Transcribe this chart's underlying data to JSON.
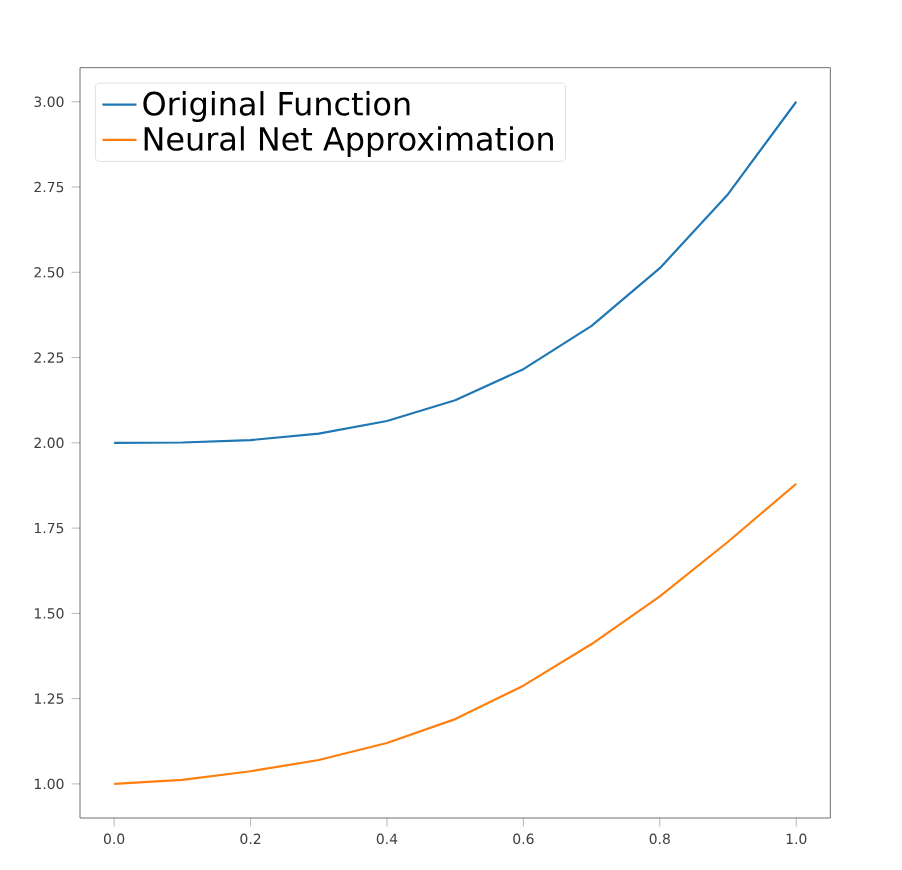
{
  "chart_data": {
    "type": "line",
    "x": [
      0,
      0.1,
      0.2,
      0.3,
      0.4,
      0.5,
      0.6,
      0.7,
      0.8,
      0.9,
      1.0
    ],
    "series": [
      {
        "name": "Original Function",
        "color": "#1f77b4",
        "values": [
          2.0,
          2.001,
          2.008,
          2.027,
          2.064,
          2.125,
          2.216,
          2.343,
          2.512,
          2.729,
          3.0
        ]
      },
      {
        "name": "Neural Net Approximation",
        "color": "#ff7f0e",
        "values": [
          1.0,
          1.012,
          1.037,
          1.07,
          1.12,
          1.19,
          1.288,
          1.41,
          1.55,
          1.71,
          1.88
        ]
      }
    ],
    "xlim": [
      -0.05,
      1.05
    ],
    "ylim": [
      0.9,
      3.1
    ],
    "xticks": [
      {
        "value": 0.0,
        "label": "0.0"
      },
      {
        "value": 0.2,
        "label": "0.2"
      },
      {
        "value": 0.4,
        "label": "0.4"
      },
      {
        "value": 0.6,
        "label": "0.6"
      },
      {
        "value": 0.8,
        "label": "0.8"
      },
      {
        "value": 1.0,
        "label": "1.0"
      }
    ],
    "yticks": [
      {
        "value": 1.0,
        "label": "1.00"
      },
      {
        "value": 1.25,
        "label": "1.25"
      },
      {
        "value": 1.5,
        "label": "1.50"
      },
      {
        "value": 1.75,
        "label": "1.75"
      },
      {
        "value": 2.0,
        "label": "2.00"
      },
      {
        "value": 2.25,
        "label": "2.25"
      },
      {
        "value": 2.5,
        "label": "2.50"
      },
      {
        "value": 2.75,
        "label": "2.75"
      },
      {
        "value": 3.0,
        "label": "3.00"
      }
    ],
    "legend": "top left",
    "grid": false
  }
}
